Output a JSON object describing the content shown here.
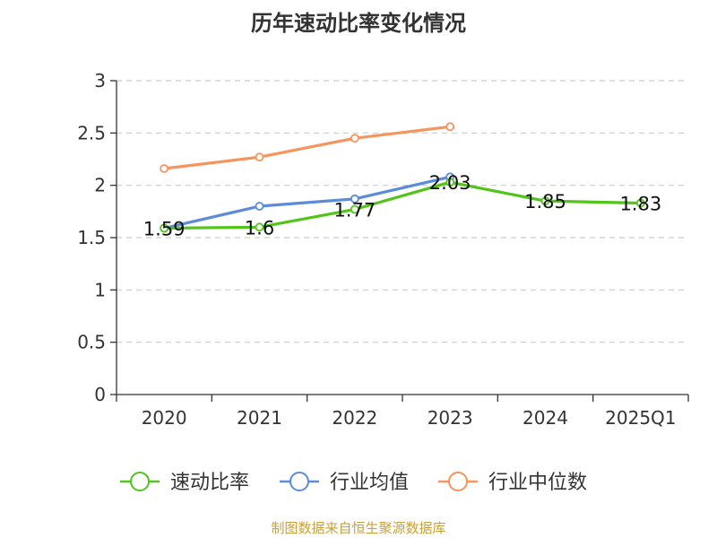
{
  "chart_data": {
    "type": "line",
    "title": "历年速动比率变化情况",
    "categories": [
      "2020",
      "2021",
      "2022",
      "2023",
      "2024",
      "2025Q1"
    ],
    "ylim": [
      0,
      3
    ],
    "yticks": [
      0,
      0.5,
      1,
      1.5,
      2,
      2.5,
      3
    ],
    "ytick_labels": [
      "0",
      "0.5",
      "1",
      "1.5",
      "2",
      "2.5",
      "3"
    ],
    "grid": true,
    "legend_position": "bottom",
    "series": [
      {
        "name": "速动比率",
        "color": "#52c41a",
        "values": [
          1.59,
          1.6,
          1.77,
          2.03,
          1.85,
          1.83
        ],
        "labels": [
          "1.59",
          "1.6",
          "1.77",
          "2.03",
          "1.85",
          "1.83"
        ]
      },
      {
        "name": "行业均值",
        "color": "#5b8bd9",
        "values": [
          1.59,
          1.8,
          1.87,
          2.08,
          null,
          null
        ]
      },
      {
        "name": "行业中位数",
        "color": "#f7945e",
        "values": [
          2.16,
          2.27,
          2.45,
          2.56,
          null,
          null
        ]
      }
    ]
  },
  "source_note": "制图数据来自恒生聚源数据库"
}
